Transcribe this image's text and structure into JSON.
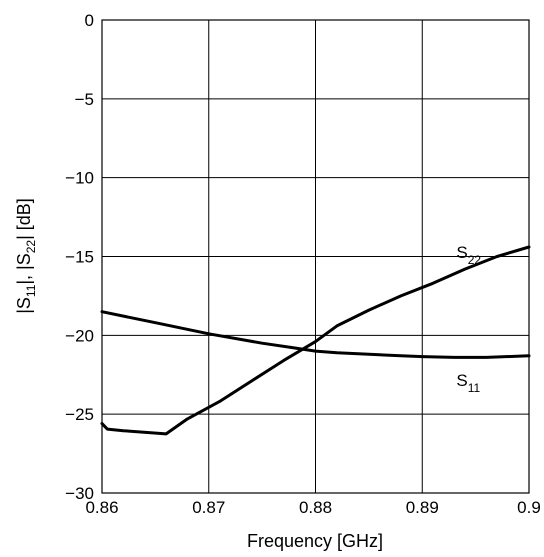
{
  "chart_data": {
    "type": "line",
    "xlabel": "Frequency [GHz]",
    "ylabel": "|S11|, |S22| [dB]",
    "xlim": [
      0.86,
      0.9
    ],
    "ylim": [
      -30,
      0
    ],
    "xticks": [
      0.86,
      0.87,
      0.88,
      0.89,
      0.9
    ],
    "xtick_labels": [
      "0.86",
      "0.87",
      "0.88",
      "0.89",
      "0.9"
    ],
    "yticks": [
      0,
      -5,
      -10,
      -15,
      -20,
      -25,
      -30
    ],
    "ytick_labels": [
      "0",
      "−5",
      "−10",
      "−15",
      "−20",
      "−25",
      "−30"
    ],
    "grid": true,
    "series": [
      {
        "name": "S11",
        "label_main": "S",
        "label_sub": "11",
        "x": [
          0.86,
          0.865,
          0.87,
          0.875,
          0.878,
          0.88,
          0.882,
          0.885,
          0.888,
          0.89,
          0.893,
          0.896,
          0.9
        ],
        "y": [
          -18.5,
          -19.2,
          -19.9,
          -20.5,
          -20.8,
          -21.0,
          -21.1,
          -21.2,
          -21.3,
          -21.35,
          -21.4,
          -21.4,
          -21.3
        ]
      },
      {
        "name": "S22",
        "label_main": "S",
        "label_sub": "22",
        "x": [
          0.86,
          0.8605,
          0.862,
          0.866,
          0.868,
          0.871,
          0.874,
          0.877,
          0.88,
          0.882,
          0.885,
          0.888,
          0.891,
          0.894,
          0.897,
          0.9
        ],
        "y": [
          -25.6,
          -25.95,
          -26.05,
          -26.25,
          -25.3,
          -24.2,
          -22.9,
          -21.6,
          -20.4,
          -19.4,
          -18.4,
          -17.5,
          -16.7,
          -15.8,
          -15.0,
          -14.4
        ]
      }
    ]
  }
}
